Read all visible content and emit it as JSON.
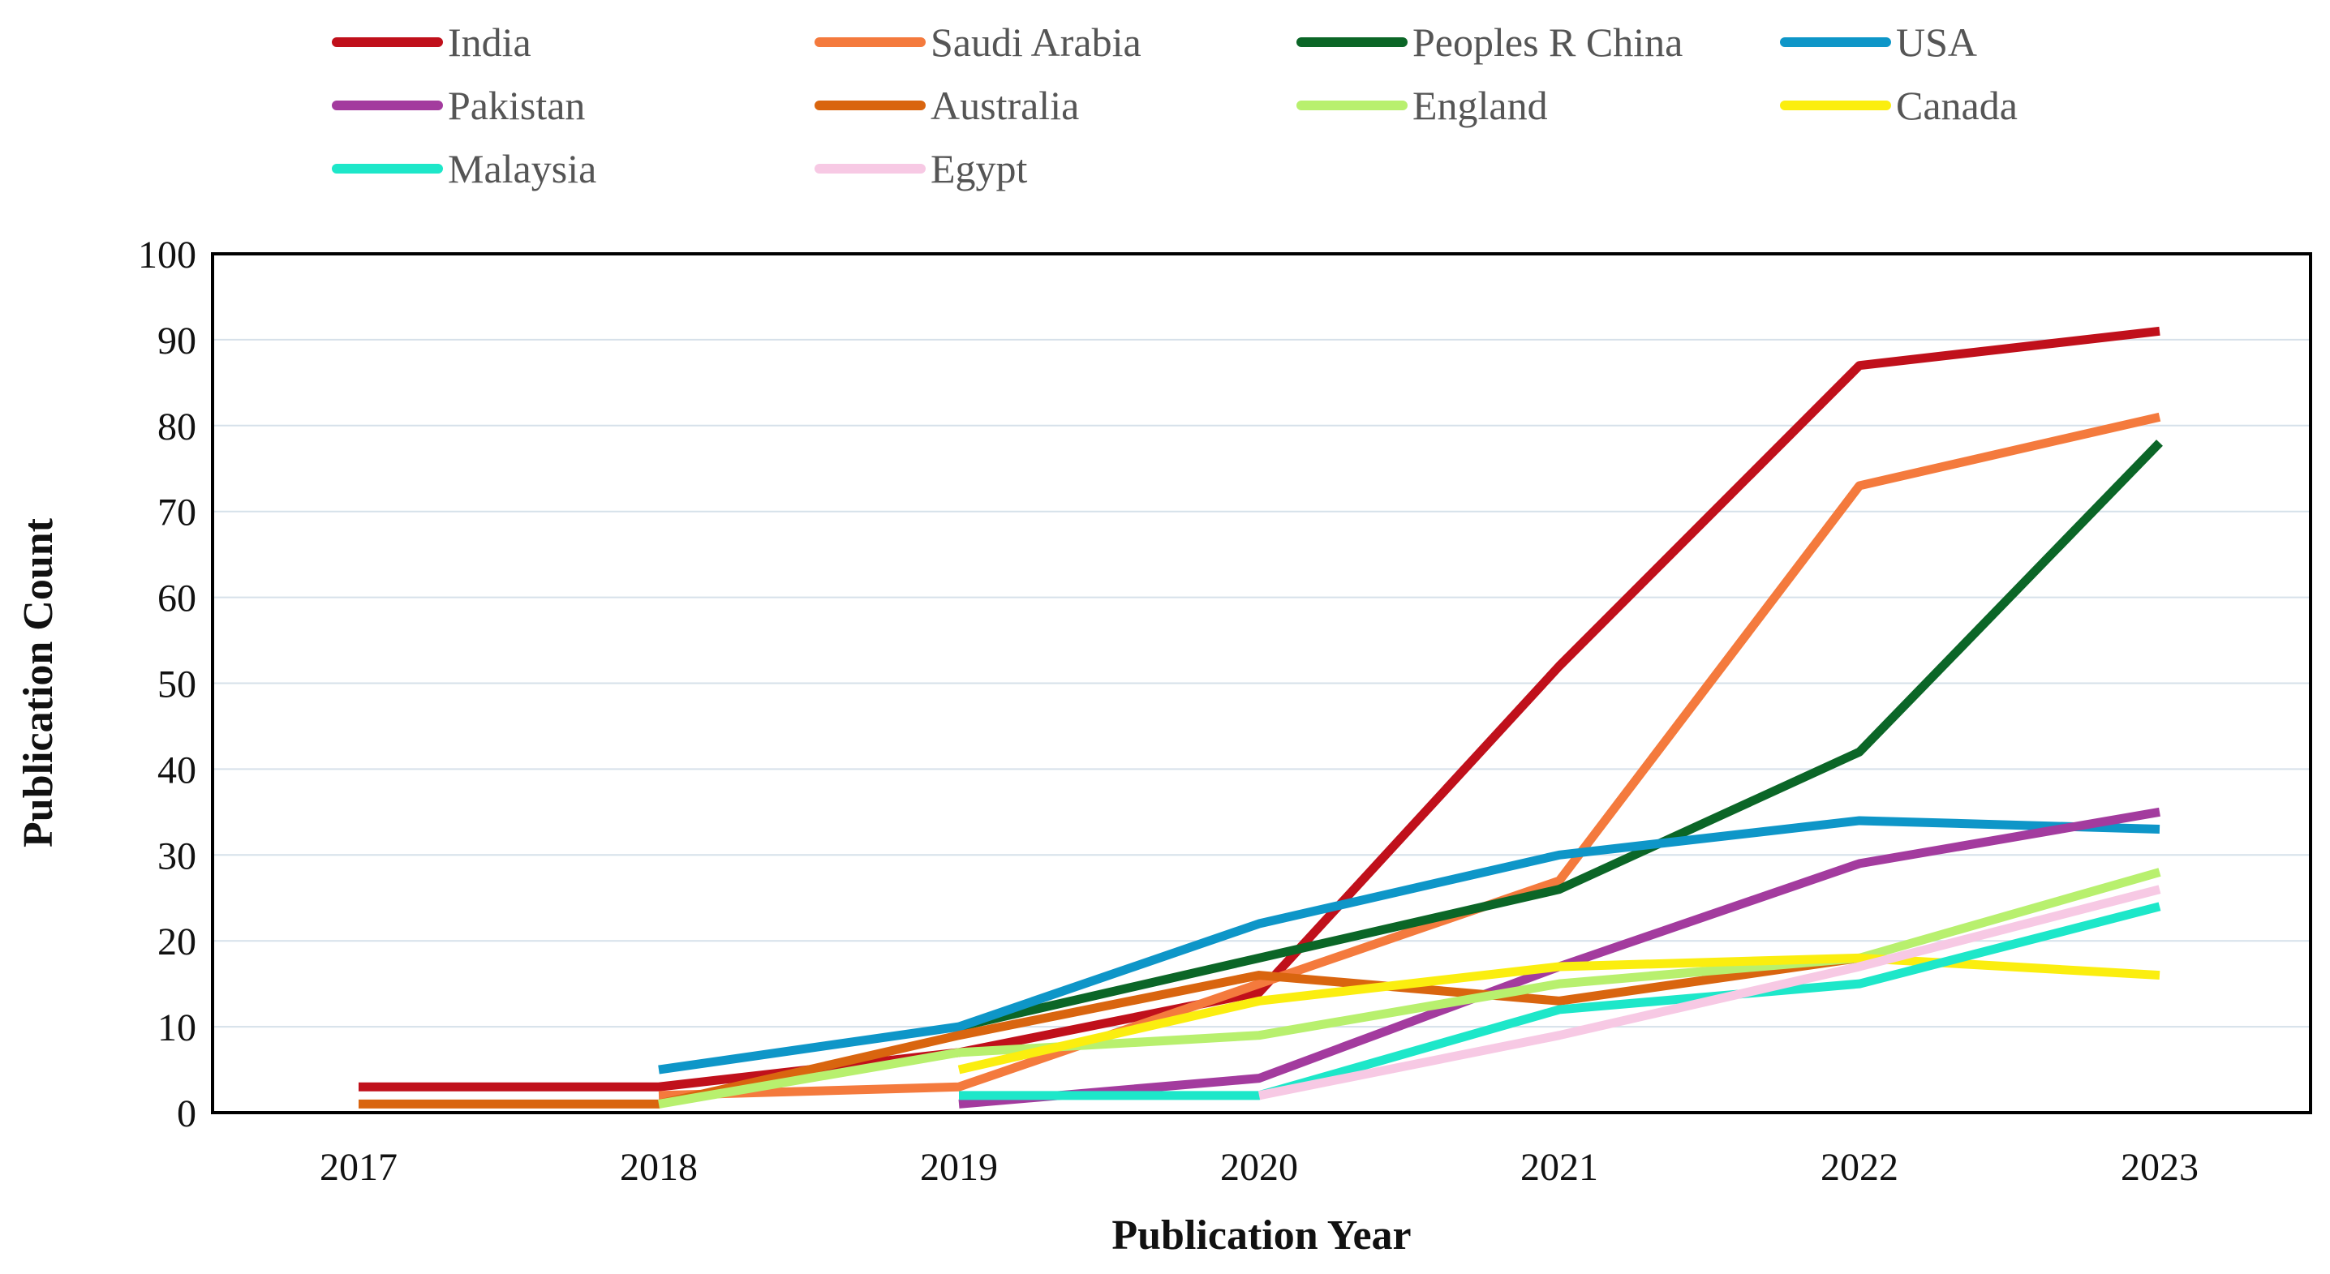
{
  "chart_data": {
    "type": "line",
    "xlabel": "Publication Year",
    "ylabel": "Publication Count",
    "ylim": [
      0,
      100
    ],
    "yticks": [
      "0",
      "10",
      "20",
      "30",
      "40",
      "50",
      "60",
      "70",
      "80",
      "90",
      "100"
    ],
    "categories": [
      "2017",
      "2018",
      "2019",
      "2020",
      "2021",
      "2022",
      "2023"
    ],
    "grid": true,
    "legend_position": "top",
    "series": [
      {
        "name": "India",
        "color": "#c0101b",
        "values": [
          3,
          3,
          7,
          14,
          52,
          87,
          91
        ]
      },
      {
        "name": "Saudi Arabia",
        "color": "#f47a3d",
        "values": [
          null,
          2,
          3,
          15,
          27,
          73,
          81
        ]
      },
      {
        "name": "Peoples R China",
        "color": "#0b6627",
        "values": [
          null,
          null,
          10,
          18,
          26,
          42,
          78
        ]
      },
      {
        "name": "USA",
        "color": "#0e96c8",
        "values": [
          null,
          5,
          10,
          22,
          30,
          34,
          33
        ]
      },
      {
        "name": "Pakistan",
        "color": "#a33b9e",
        "values": [
          null,
          null,
          1,
          4,
          17,
          29,
          35
        ]
      },
      {
        "name": "Australia",
        "color": "#d9650f",
        "values": [
          1,
          1,
          9,
          16,
          13,
          18,
          null
        ]
      },
      {
        "name": "England",
        "color": "#b8f06e",
        "values": [
          null,
          1,
          7,
          9,
          15,
          18,
          28
        ]
      },
      {
        "name": "Canada",
        "color": "#fbee0f",
        "values": [
          null,
          null,
          5,
          13,
          17,
          18,
          16
        ]
      },
      {
        "name": "Malaysia",
        "color": "#1de7c9",
        "values": [
          null,
          null,
          2,
          2,
          12,
          15,
          24
        ]
      },
      {
        "name": "Egypt",
        "color": "#f7c9e4",
        "values": [
          null,
          null,
          null,
          2,
          9,
          17,
          26
        ]
      }
    ]
  }
}
